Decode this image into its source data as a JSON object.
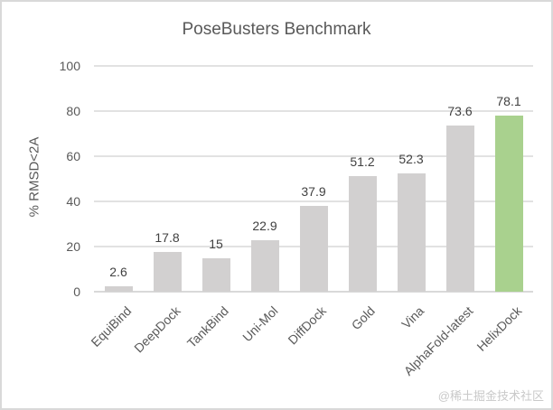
{
  "watermark": "@稀土掘金技术社区",
  "chart_data": {
    "type": "bar",
    "title": "PoseBusters Benchmark",
    "xlabel": "",
    "ylabel": "% RMSD<2A",
    "categories": [
      "EquiBind",
      "DeepDock",
      "TankBind",
      "Uni-Mol",
      "DiffDock",
      "Gold",
      "Vina",
      "AlphaFold-latest",
      "HelixDock"
    ],
    "values": [
      2.6,
      17.8,
      15,
      22.9,
      37.9,
      51.2,
      52.3,
      73.6,
      78.1
    ],
    "ylim": [
      0,
      100
    ],
    "yticks": [
      0,
      20,
      40,
      60,
      80,
      100
    ],
    "grid": true,
    "legend": false,
    "highlight_index": 8,
    "colors": {
      "bar": "#d2d0d0",
      "highlight": "#a9d18e",
      "title_text": "#595959",
      "axis_text": "#595959",
      "value_text": "#404040",
      "gridline": "#e2e2e2",
      "baseline": "#d9d9d9",
      "watermark": "#c9c9c9",
      "border": "#d9d9d9"
    }
  }
}
